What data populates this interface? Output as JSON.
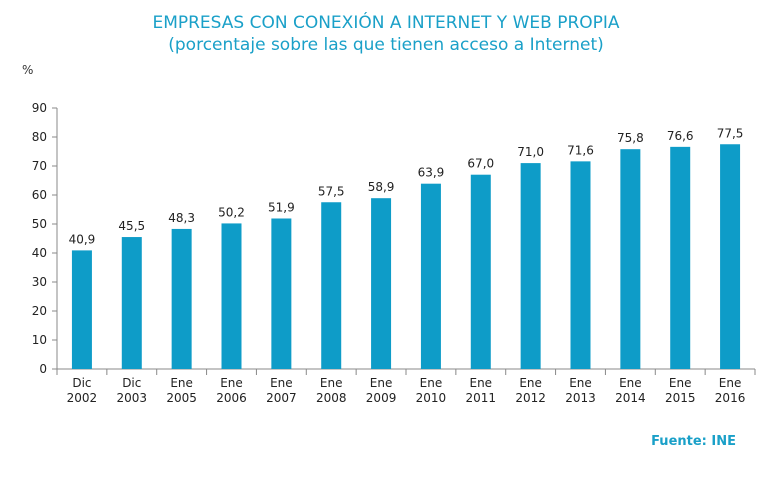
{
  "chart_data": {
    "type": "bar",
    "title": "EMPRESAS CON CONEXIÓN A INTERNET Y WEB PROPIA",
    "subtitle": "(porcentaje sobre las que tienen acceso a Internet)",
    "ylabel": "%",
    "ylim": [
      0,
      90
    ],
    "yticks": [
      0,
      10,
      20,
      30,
      40,
      50,
      60,
      70,
      80,
      90
    ],
    "grid": false,
    "bar_color": "#0e9cc8",
    "categories": [
      [
        "Dic",
        "2002"
      ],
      [
        "Dic",
        "2003"
      ],
      [
        "Ene",
        "2005"
      ],
      [
        "Ene",
        "2006"
      ],
      [
        "Ene",
        "2007"
      ],
      [
        "Ene",
        "2008"
      ],
      [
        "Ene",
        "2009"
      ],
      [
        "Ene",
        "2010"
      ],
      [
        "Ene",
        "2011"
      ],
      [
        "Ene",
        "2012"
      ],
      [
        "Ene",
        "2013"
      ],
      [
        "Ene",
        "2014"
      ],
      [
        "Ene",
        "2015"
      ],
      [
        "Ene",
        "2016"
      ]
    ],
    "values": [
      40.9,
      45.5,
      48.3,
      50.2,
      51.9,
      57.5,
      58.9,
      63.9,
      67.0,
      71.0,
      71.6,
      75.8,
      76.6,
      77.5
    ],
    "data_labels": [
      "40,9",
      "45,5",
      "48,3",
      "50,2",
      "51,9",
      "57,5",
      "58,9",
      "63,9",
      "67,0",
      "71,0",
      "71,6",
      "75,8",
      "76,6",
      "77,5"
    ]
  },
  "source": "Fuente: INE"
}
